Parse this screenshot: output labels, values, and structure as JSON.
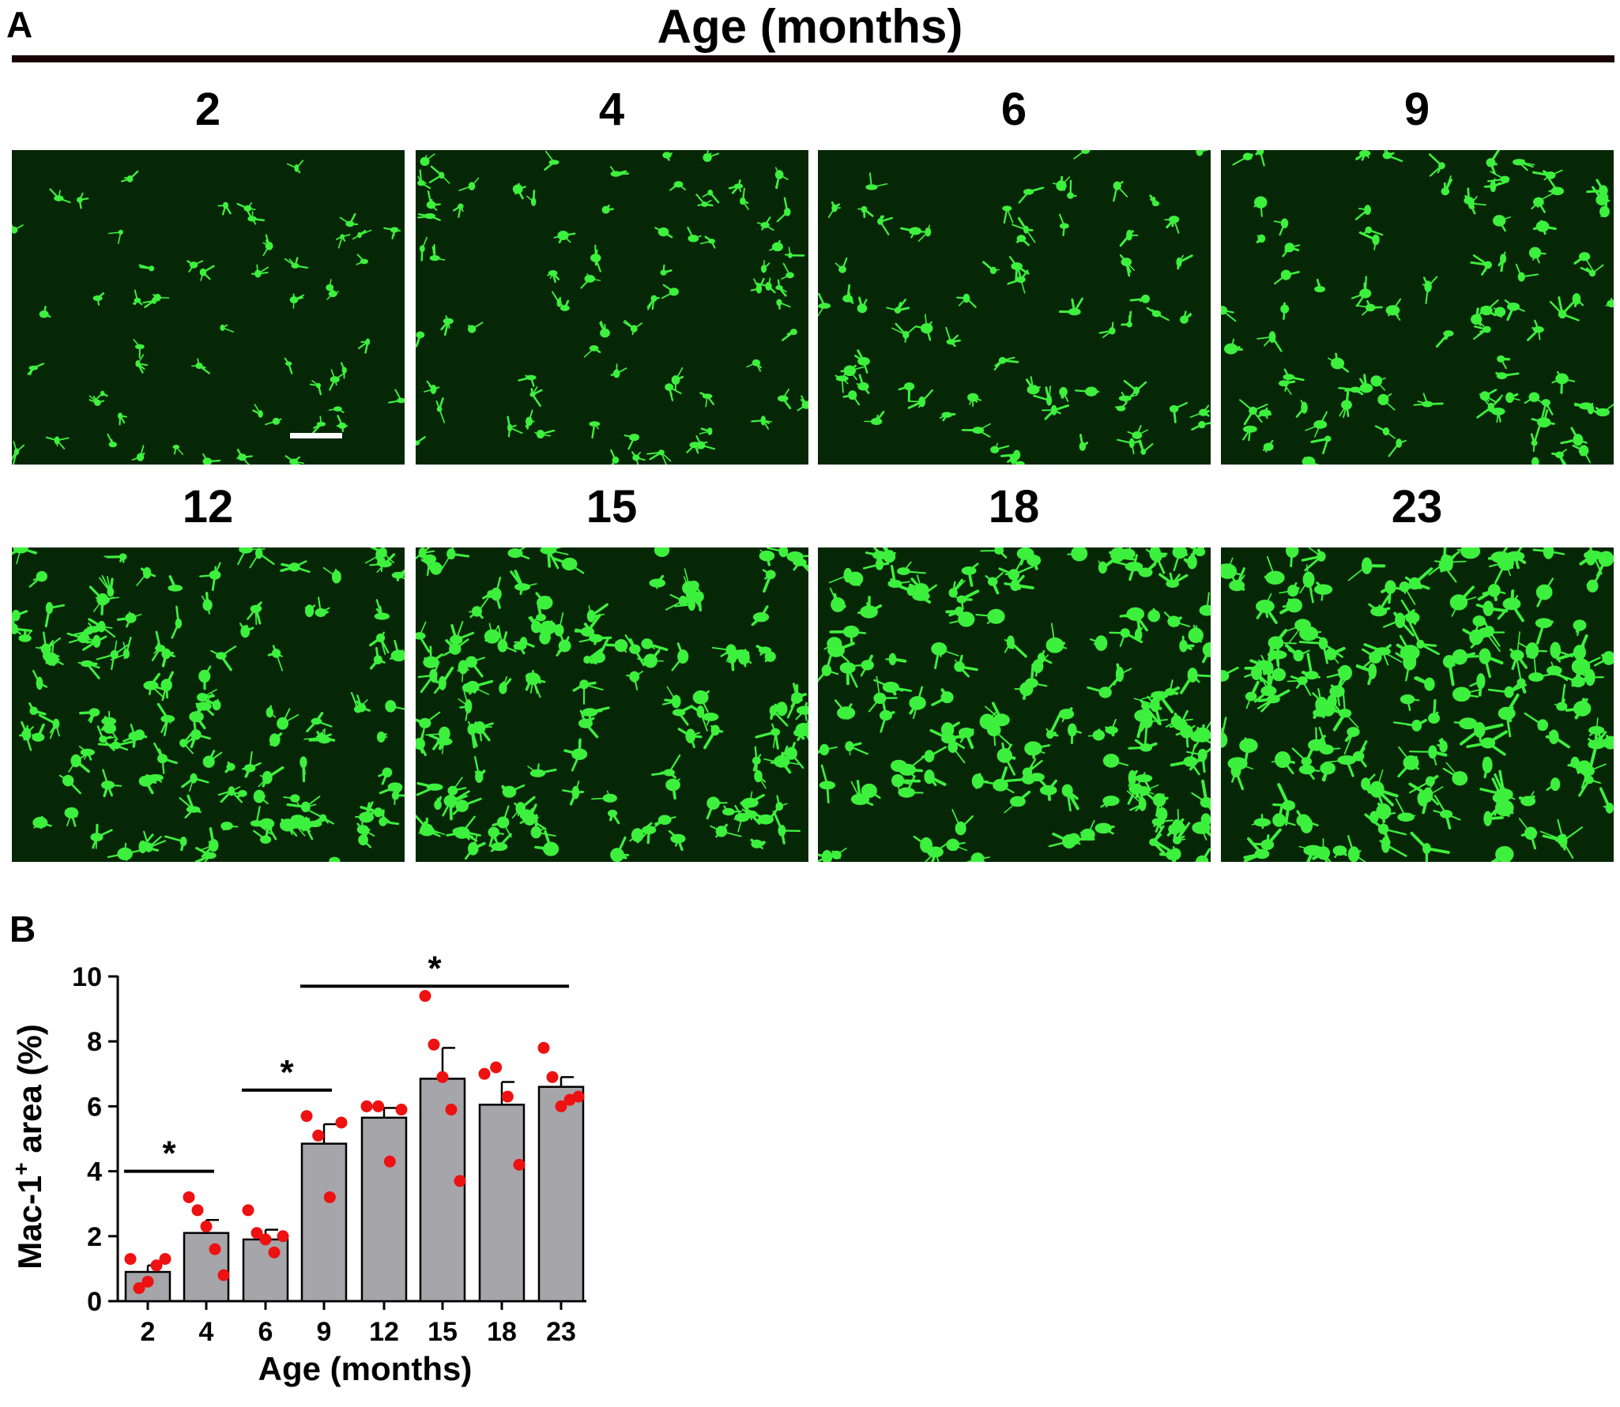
{
  "panel_a": {
    "letter": "A",
    "header": "Age (months)",
    "images": [
      {
        "age": "2",
        "scale_bar": true
      },
      {
        "age": "4",
        "scale_bar": false
      },
      {
        "age": "6",
        "scale_bar": false
      },
      {
        "age": "9",
        "scale_bar": false
      },
      {
        "age": "12",
        "scale_bar": false
      },
      {
        "age": "15",
        "scale_bar": false
      },
      {
        "age": "18",
        "scale_bar": false
      },
      {
        "age": "23",
        "scale_bar": false
      }
    ],
    "colors": {
      "background": "#062706",
      "stain": "#3ef03e",
      "scale_bar": "#ffffff"
    }
  },
  "panel_b": {
    "letter": "B"
  },
  "chart_data": {
    "type": "bar",
    "categories": [
      "2",
      "4",
      "6",
      "9",
      "12",
      "15",
      "18",
      "23"
    ],
    "values": [
      0.9,
      2.1,
      1.9,
      4.85,
      5.65,
      6.85,
      6.05,
      6.6
    ],
    "errors": [
      0.2,
      0.4,
      0.3,
      0.6,
      0.3,
      0.95,
      0.7,
      0.3
    ],
    "points": [
      [
        1.3,
        0.4,
        0.6,
        1.1,
        1.3
      ],
      [
        3.2,
        2.8,
        2.3,
        1.6,
        0.8
      ],
      [
        2.8,
        2.1,
        1.9,
        1.5,
        2.0
      ],
      [
        5.7,
        5.1,
        3.2,
        5.5
      ],
      [
        6.0,
        6.0,
        4.3,
        5.9
      ],
      [
        9.4,
        7.9,
        6.9,
        5.9,
        3.7
      ],
      [
        7.0,
        7.2,
        6.3,
        4.2
      ],
      [
        7.8,
        6.9,
        6.0,
        6.2,
        6.3
      ]
    ],
    "significance": [
      {
        "from": "2",
        "to": "4",
        "label": "*"
      },
      {
        "from": "6",
        "to": "9",
        "label": "*"
      },
      {
        "from": "9",
        "to": "23",
        "label": "*"
      }
    ],
    "xlabel": "Age (months)",
    "ylabel_main": "Mac-1",
    "ylabel_sup": "+",
    "ylabel_rest": " area (%)",
    "yticks": [
      0,
      2,
      4,
      6,
      8,
      10
    ],
    "ylim": [
      0,
      10
    ],
    "colors": {
      "bar_fill": "#a6a5aa",
      "points": "#ee1111",
      "bar_edge": "#000000"
    }
  }
}
